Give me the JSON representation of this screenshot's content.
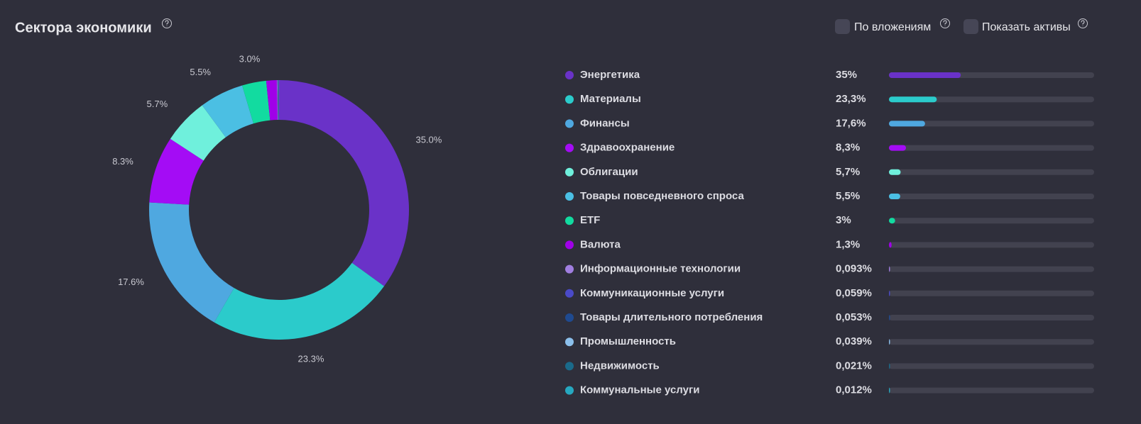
{
  "chart_data": {
    "type": "donut",
    "title": "Сектора экономики",
    "categories": [
      "Энергетика",
      "Материалы",
      "Финансы",
      "Здравоохранение",
      "Облигации",
      "Товары повседневного спроса",
      "ETF",
      "Валюта",
      "Информационные технологии",
      "Коммуникационные услуги",
      "Товары длительного потребления",
      "Промышленность",
      "Недвижимость",
      "Коммунальные услуги"
    ],
    "values": [
      35,
      23.3,
      17.6,
      8.3,
      5.7,
      5.5,
      3.0,
      1.3,
      0.093,
      0.059,
      0.053,
      0.039,
      0.021,
      0.012
    ],
    "value_labels": [
      "35.0%",
      "23.3%",
      "17.6%",
      "8.3%",
      "5.7%",
      "5.5%",
      "3.0%",
      null,
      null,
      null,
      null,
      null,
      null,
      null
    ],
    "list_labels": [
      "35%",
      "23,3%",
      "17,6%",
      "8,3%",
      "5,7%",
      "5,5%",
      "3%",
      "1,3%",
      "0,093%",
      "0,059%",
      "0,053%",
      "0,039%",
      "0,021%",
      "0,012%"
    ],
    "colors": [
      "#6a32c8",
      "#2bcbcb",
      "#4fa8e0",
      "#a40cf5",
      "#6ff0dc",
      "#4bbfe3",
      "#12dba0",
      "#a000e8",
      "#a07ee0",
      "#4a4ac8",
      "#1f4a90",
      "#8cc0ec",
      "#1a6a8a",
      "#26a8c0"
    ]
  },
  "controls": {
    "toggles": [
      "По вложениям",
      "Показать активы"
    ]
  }
}
